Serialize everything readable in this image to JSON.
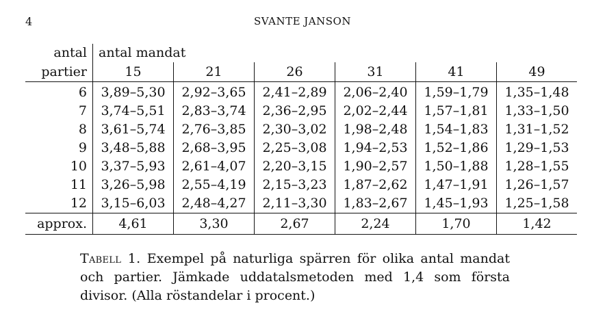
{
  "header": {
    "page_number": "4",
    "running_head": "SVANTE JANSON"
  },
  "table": {
    "stub_header_top": "antal",
    "stub_header_bottom": "partier",
    "column_group_header": "antal mandat",
    "columns": [
      "15",
      "21",
      "26",
      "31",
      "41",
      "49"
    ],
    "rows": [
      {
        "label": "6",
        "cells": [
          "3,89–5,30",
          "2,92–3,65",
          "2,41–2,89",
          "2,06–2,40",
          "1,59–1,79",
          "1,35–1,48"
        ]
      },
      {
        "label": "7",
        "cells": [
          "3,74–5,51",
          "2,83–3,74",
          "2,36–2,95",
          "2,02–2,44",
          "1,57–1,81",
          "1,33–1,50"
        ]
      },
      {
        "label": "8",
        "cells": [
          "3,61–5,74",
          "2,76–3,85",
          "2,30–3,02",
          "1,98–2,48",
          "1,54–1,83",
          "1,31–1,52"
        ]
      },
      {
        "label": "9",
        "cells": [
          "3,48–5,88",
          "2,68–3,95",
          "2,25–3,08",
          "1,94–2,53",
          "1,52–1,86",
          "1,29–1,53"
        ]
      },
      {
        "label": "10",
        "cells": [
          "3,37–5,93",
          "2,61–4,07",
          "2,20–3,15",
          "1,90–2,57",
          "1,50–1,88",
          "1,28–1,55"
        ]
      },
      {
        "label": "11",
        "cells": [
          "3,26–5,98",
          "2,55–4,19",
          "2,15–3,23",
          "1,87–2,62",
          "1,47–1,91",
          "1,26–1,57"
        ]
      },
      {
        "label": "12",
        "cells": [
          "3,15–6,03",
          "2,48–4,27",
          "2,11–3,30",
          "1,83–2,67",
          "1,45–1,93",
          "1,25–1,58"
        ]
      }
    ],
    "approx_row": {
      "label": "approx.",
      "cells": [
        "4,61",
        "3,30",
        "2,67",
        "2,24",
        "1,70",
        "1,42"
      ]
    }
  },
  "caption": {
    "label": "Tabell 1.",
    "text": "Exempel på naturliga spärren för olika antal mandat och partier. Jämkade uddatalsmetoden med 1,4 som första divisor. (Alla röstandelar i procent.)"
  }
}
